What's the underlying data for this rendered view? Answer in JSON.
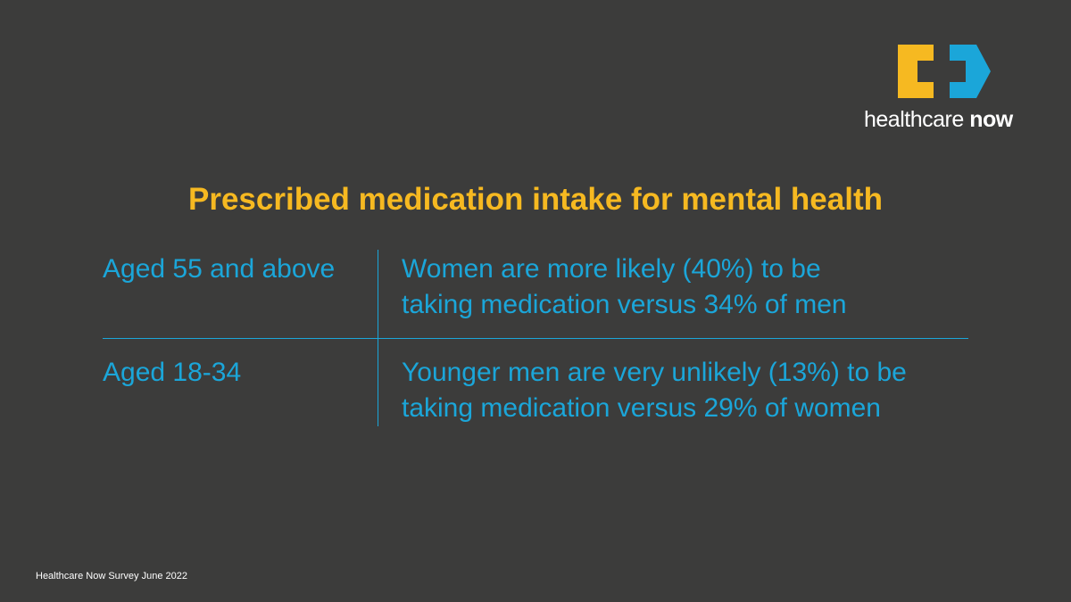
{
  "logo": {
    "wordmark_regular": "healthcare ",
    "wordmark_bold": "now",
    "icon": "healthcare-now-logo-mark",
    "colors": {
      "yellow": "#f6b921",
      "blue": "#1ba6d9"
    }
  },
  "title": "Prescribed medication intake for mental health",
  "rows": [
    {
      "label": "Aged 55 and above",
      "line1": "Women are more likely (40%) to be",
      "line2": "taking medication versus 34% of men"
    },
    {
      "label": "Aged 18-34",
      "line1": "Younger men are very unlikely (13%) to be",
      "line2": "taking medication versus 29% of women"
    }
  ],
  "footer": "Healthcare Now Survey June 2022",
  "colors": {
    "background": "#3c3c3b",
    "title": "#f6b921",
    "body_text": "#1ba6d9",
    "footer": "#ffffff"
  }
}
